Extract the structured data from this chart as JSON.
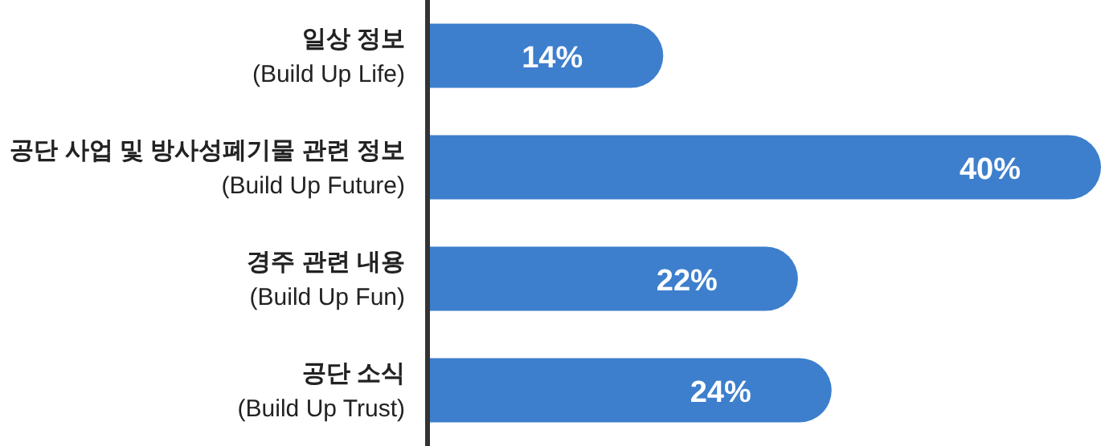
{
  "chart_data": {
    "type": "bar",
    "orientation": "horizontal",
    "categories": [
      "일상 정보\n(Build Up Life)",
      "공단 사업 및 방사성폐기물 관련 정보\n(Build Up Future)",
      "경주 관련 내용\n(Build Up Fun)",
      "공단 소식\n(Build Up Trust)"
    ],
    "values": [
      14,
      40,
      22,
      24
    ],
    "value_labels": [
      "14%",
      "40%",
      "22%",
      "24%"
    ],
    "color": "#3d7fcd",
    "xlim": [
      0,
      40
    ],
    "tick_labels": "y"
  }
}
